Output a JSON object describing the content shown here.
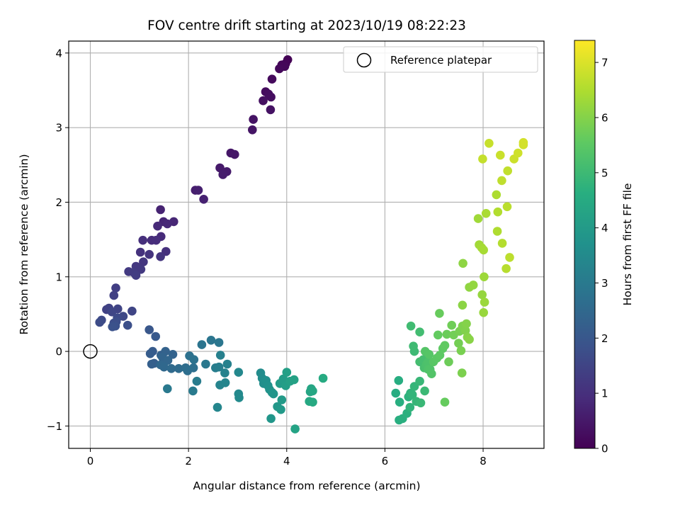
{
  "chart_data": {
    "type": "scatter",
    "title": "FOV centre drift starting at 2023/10/19 08:22:23",
    "xlabel": "Angular distance from reference (arcmin)",
    "ylabel": "Rotation from reference (arcmin)",
    "xlim": [
      -0.44,
      9.24
    ],
    "ylim": [
      -1.3,
      4.16
    ],
    "xticks": [
      0,
      2,
      4,
      6,
      8
    ],
    "yticks": [
      -1,
      0,
      1,
      2,
      3,
      4
    ],
    "xtick_labels": [
      "0",
      "2",
      "4",
      "6",
      "8"
    ],
    "ytick_labels": [
      "−1",
      "0",
      "1",
      "2",
      "3",
      "4"
    ],
    "grid": true,
    "legend": {
      "position": "top-right",
      "entries": [
        "Reference platepar"
      ]
    },
    "reference_point": {
      "x": 0,
      "y": 0,
      "label": "Reference platepar"
    },
    "colorbar": {
      "label": "Hours from first FF file",
      "colormap": "viridis",
      "range": [
        0,
        7.4
      ],
      "ticks": [
        0,
        1,
        2,
        3,
        4,
        5,
        6,
        7
      ],
      "tick_labels": [
        "0",
        "1",
        "2",
        "3",
        "4",
        "5",
        "6",
        "7"
      ]
    },
    "points": [
      [
        4.02,
        3.91,
        0.03
      ],
      [
        3.98,
        3.86,
        0.06
      ],
      [
        3.9,
        3.84,
        0.09
      ],
      [
        3.96,
        3.82,
        0.12
      ],
      [
        3.85,
        3.79,
        0.15
      ],
      [
        3.7,
        3.65,
        0.18
      ],
      [
        3.57,
        3.48,
        0.22
      ],
      [
        3.63,
        3.45,
        0.25
      ],
      [
        3.68,
        3.41,
        0.28
      ],
      [
        3.52,
        3.36,
        0.31
      ],
      [
        3.67,
        3.24,
        0.35
      ],
      [
        3.32,
        3.11,
        0.38
      ],
      [
        3.3,
        2.97,
        0.41
      ],
      [
        2.86,
        2.66,
        0.45
      ],
      [
        2.94,
        2.64,
        0.48
      ],
      [
        2.64,
        2.46,
        0.52
      ],
      [
        2.78,
        2.41,
        0.55
      ],
      [
        2.7,
        2.37,
        0.58
      ],
      [
        2.14,
        2.16,
        0.62
      ],
      [
        2.2,
        2.16,
        0.65
      ],
      [
        2.31,
        2.04,
        0.68
      ],
      [
        1.43,
        1.9,
        0.72
      ],
      [
        1.49,
        1.74,
        0.76
      ],
      [
        1.7,
        1.74,
        0.79
      ],
      [
        1.57,
        1.71,
        0.82
      ],
      [
        1.37,
        1.68,
        0.86
      ],
      [
        1.44,
        1.54,
        0.89
      ],
      [
        1.25,
        1.49,
        0.93
      ],
      [
        1.34,
        1.49,
        0.96
      ],
      [
        1.07,
        1.49,
        0.99
      ],
      [
        1.54,
        1.34,
        1.03
      ],
      [
        1.02,
        1.33,
        1.06
      ],
      [
        1.2,
        1.3,
        1.09
      ],
      [
        1.43,
        1.27,
        1.12
      ],
      [
        1.08,
        1.2,
        1.16
      ],
      [
        0.93,
        1.14,
        1.19
      ],
      [
        1.03,
        1.1,
        1.22
      ],
      [
        0.78,
        1.07,
        1.26
      ],
      [
        0.88,
        1.06,
        1.3
      ],
      [
        0.93,
        1.02,
        1.33
      ],
      [
        0.52,
        0.85,
        1.36
      ],
      [
        0.48,
        0.75,
        1.4
      ],
      [
        0.33,
        0.56,
        1.43
      ],
      [
        0.38,
        0.58,
        1.46
      ],
      [
        0.56,
        0.57,
        1.5
      ],
      [
        0.85,
        0.54,
        1.53
      ],
      [
        0.44,
        0.53,
        1.56
      ],
      [
        0.67,
        0.47,
        1.6
      ],
      [
        0.23,
        0.42,
        1.63
      ],
      [
        0.55,
        0.45,
        1.66
      ],
      [
        0.19,
        0.39,
        1.7
      ],
      [
        0.48,
        0.38,
        1.73
      ],
      [
        0.53,
        0.4,
        1.76
      ],
      [
        0.76,
        0.35,
        1.8
      ],
      [
        0.51,
        0.34,
        1.83
      ],
      [
        0.45,
        0.33,
        1.86
      ],
      [
        1.2,
        0.29,
        2.0
      ],
      [
        1.33,
        0.2,
        2.06
      ],
      [
        1.27,
        0.0,
        2.1
      ],
      [
        1.22,
        -0.03,
        2.14
      ],
      [
        1.3,
        -0.16,
        2.18
      ],
      [
        1.25,
        -0.17,
        2.22
      ],
      [
        1.44,
        -0.05,
        2.26
      ],
      [
        1.53,
        0.0,
        2.3
      ],
      [
        1.68,
        -0.04,
        2.34
      ],
      [
        1.47,
        -0.08,
        2.38
      ],
      [
        1.58,
        -0.12,
        2.42
      ],
      [
        1.43,
        -0.18,
        2.46
      ],
      [
        1.5,
        -0.21,
        2.5
      ],
      [
        1.65,
        -0.23,
        2.54
      ],
      [
        1.8,
        -0.23,
        2.58
      ],
      [
        1.94,
        -0.22,
        2.62
      ],
      [
        1.98,
        -0.26,
        2.66
      ],
      [
        2.1,
        -0.22,
        2.7
      ],
      [
        2.02,
        -0.06,
        2.74
      ],
      [
        2.11,
        -0.11,
        2.78
      ],
      [
        2.27,
        0.09,
        2.82
      ],
      [
        2.46,
        0.15,
        2.86
      ],
      [
        2.62,
        0.12,
        2.9
      ],
      [
        2.35,
        -0.17,
        2.94
      ],
      [
        1.57,
        -0.5,
        2.98
      ],
      [
        2.09,
        -0.53,
        3.02
      ],
      [
        2.17,
        -0.4,
        3.06
      ],
      [
        2.55,
        -0.22,
        3.1
      ],
      [
        2.62,
        -0.21,
        3.14
      ],
      [
        2.65,
        -0.05,
        3.18
      ],
      [
        2.79,
        -0.17,
        3.22
      ],
      [
        2.74,
        -0.29,
        3.26
      ],
      [
        2.64,
        -0.45,
        3.3
      ],
      [
        2.75,
        -0.42,
        3.34
      ],
      [
        2.59,
        -0.75,
        3.38
      ],
      [
        3.02,
        -0.28,
        3.42
      ],
      [
        3.02,
        -0.57,
        3.46
      ],
      [
        3.03,
        -0.62,
        3.5
      ],
      [
        3.47,
        -0.29,
        3.54
      ],
      [
        3.5,
        -0.36,
        3.58
      ],
      [
        3.53,
        -0.43,
        3.62
      ],
      [
        3.58,
        -0.39,
        3.66
      ],
      [
        3.62,
        -0.46,
        3.7
      ],
      [
        3.65,
        -0.51,
        3.74
      ],
      [
        3.7,
        -0.55,
        3.78
      ],
      [
        3.73,
        -0.57,
        3.82
      ],
      [
        3.68,
        -0.9,
        3.86
      ],
      [
        3.81,
        -0.74,
        3.9
      ],
      [
        3.88,
        -0.78,
        3.94
      ],
      [
        3.9,
        -0.65,
        3.98
      ],
      [
        3.86,
        -0.43,
        4.02
      ],
      [
        3.93,
        -0.37,
        4.06
      ],
      [
        3.98,
        -0.46,
        4.1
      ],
      [
        4.0,
        -0.28,
        4.14
      ],
      [
        4.07,
        -0.4,
        4.18
      ],
      [
        4.15,
        -0.38,
        4.22
      ],
      [
        4.17,
        -1.04,
        4.26
      ],
      [
        4.48,
        -0.54,
        4.3
      ],
      [
        4.5,
        -0.5,
        4.34
      ],
      [
        4.53,
        -0.53,
        4.38
      ],
      [
        4.46,
        -0.67,
        4.42
      ],
      [
        4.53,
        -0.68,
        4.46
      ],
      [
        4.74,
        -0.36,
        4.5
      ],
      [
        6.22,
        -0.56,
        4.55
      ],
      [
        6.28,
        -0.39,
        4.58
      ],
      [
        6.3,
        -0.68,
        4.61
      ],
      [
        6.29,
        -0.92,
        4.64
      ],
      [
        6.36,
        -0.9,
        4.67
      ],
      [
        6.45,
        -0.83,
        4.7
      ],
      [
        6.48,
        -0.61,
        4.73
      ],
      [
        6.52,
        -0.56,
        4.76
      ],
      [
        6.51,
        -0.75,
        4.79
      ],
      [
        6.56,
        -0.58,
        4.82
      ],
      [
        6.6,
        -0.47,
        4.85
      ],
      [
        6.64,
        -0.67,
        4.88
      ],
      [
        6.71,
        -0.4,
        4.91
      ],
      [
        6.73,
        -0.69,
        4.94
      ],
      [
        6.81,
        -0.53,
        4.97
      ],
      [
        6.6,
        -0.0,
        5.0
      ],
      [
        6.58,
        0.07,
        5.03
      ],
      [
        6.53,
        0.34,
        5.06
      ],
      [
        6.71,
        0.26,
        5.09
      ],
      [
        6.71,
        -0.14,
        5.12
      ],
      [
        6.78,
        -0.11,
        5.15
      ],
      [
        6.8,
        -0.22,
        5.18
      ],
      [
        6.83,
        -0.21,
        5.21
      ],
      [
        6.85,
        -0.17,
        5.24
      ],
      [
        6.88,
        -0.14,
        5.27
      ],
      [
        6.88,
        -0.24,
        5.3
      ],
      [
        6.92,
        -0.24,
        5.33
      ],
      [
        6.95,
        -0.3,
        5.36
      ],
      [
        6.82,
        0.0,
        5.39
      ],
      [
        6.9,
        -0.04,
        5.42
      ],
      [
        6.99,
        -0.14,
        5.45
      ],
      [
        7.06,
        -0.09,
        5.48
      ],
      [
        7.12,
        -0.05,
        5.51
      ],
      [
        7.18,
        0.04,
        5.54
      ],
      [
        7.22,
        0.08,
        5.57
      ],
      [
        7.08,
        0.22,
        5.6
      ],
      [
        7.22,
        -0.68,
        5.63
      ],
      [
        7.11,
        0.51,
        5.66
      ],
      [
        7.26,
        0.23,
        5.69
      ],
      [
        7.3,
        -0.14,
        5.72
      ],
      [
        7.36,
        0.35,
        5.75
      ],
      [
        7.4,
        0.22,
        5.78
      ],
      [
        7.5,
        0.11,
        5.81
      ],
      [
        7.52,
        0.27,
        5.84
      ],
      [
        7.55,
        0.01,
        5.87
      ],
      [
        7.57,
        -0.29,
        5.9
      ],
      [
        7.58,
        0.34,
        5.93
      ],
      [
        7.64,
        0.28,
        5.96
      ],
      [
        7.66,
        0.37,
        5.99
      ],
      [
        7.68,
        0.19,
        6.02
      ],
      [
        7.72,
        0.16,
        6.05
      ],
      [
        7.58,
        0.62,
        6.08
      ],
      [
        7.59,
        1.18,
        6.11
      ],
      [
        7.72,
        0.86,
        6.14
      ],
      [
        7.8,
        0.89,
        6.17
      ],
      [
        7.98,
        0.76,
        6.2
      ],
      [
        8.01,
        0.52,
        6.23
      ],
      [
        8.03,
        0.66,
        6.26
      ],
      [
        8.02,
        1.0,
        6.29
      ],
      [
        7.9,
        1.78,
        6.32
      ],
      [
        7.92,
        1.43,
        6.35
      ],
      [
        7.97,
        1.39,
        6.38
      ],
      [
        8.01,
        1.36,
        6.41
      ],
      [
        8.06,
        1.85,
        6.44
      ],
      [
        8.27,
        2.1,
        6.47
      ],
      [
        8.29,
        1.61,
        6.5
      ],
      [
        8.3,
        1.87,
        6.53
      ],
      [
        8.39,
        1.45,
        6.56
      ],
      [
        8.47,
        1.11,
        6.59
      ],
      [
        8.49,
        1.94,
        6.62
      ],
      [
        8.54,
        1.26,
        6.65
      ],
      [
        8.38,
        2.29,
        6.68
      ],
      [
        8.5,
        2.42,
        6.71
      ],
      [
        7.99,
        2.58,
        6.74
      ],
      [
        8.12,
        2.79,
        6.77
      ],
      [
        8.35,
        2.63,
        6.8
      ],
      [
        8.63,
        2.58,
        6.83
      ],
      [
        8.71,
        2.66,
        6.86
      ],
      [
        8.82,
        2.77,
        6.89
      ],
      [
        8.82,
        2.8,
        6.92
      ]
    ]
  }
}
